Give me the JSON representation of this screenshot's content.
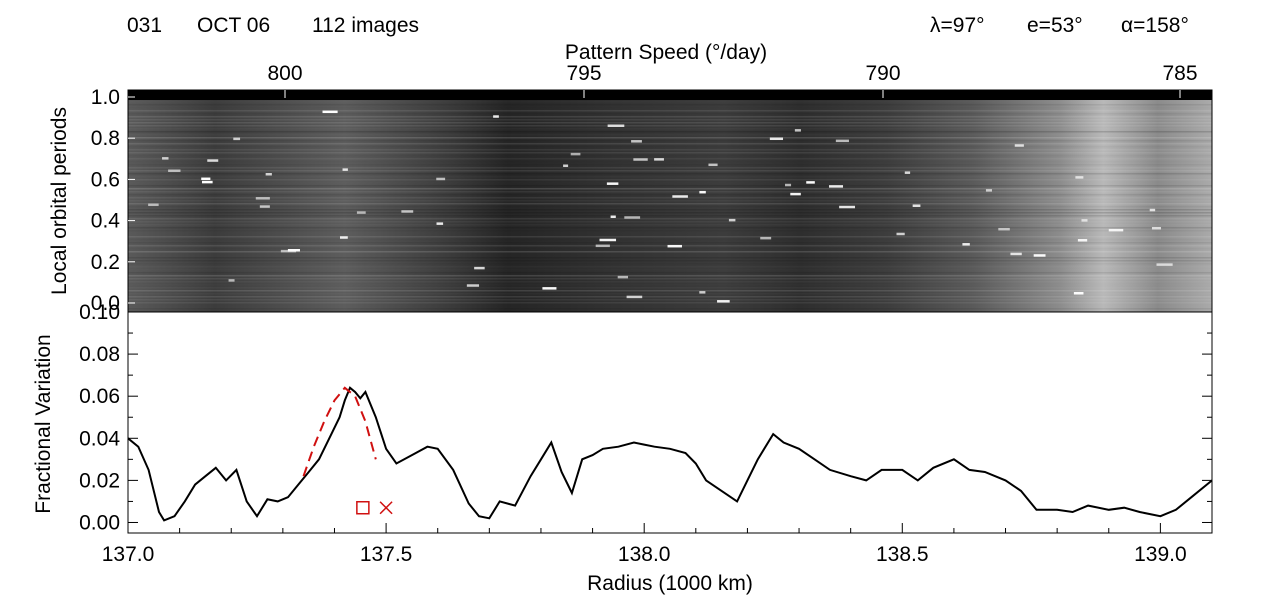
{
  "header": {
    "orbit": "031",
    "date": "OCT 06",
    "image_count": "112 images",
    "lambda": "λ=97°",
    "emission": "e=53°",
    "phase": "α=158°"
  },
  "colors": {
    "line": "#000000",
    "model": "#d01010",
    "marker": "#d01010"
  },
  "chart_data": [
    {
      "type": "heatmap",
      "colormap": "grayscale",
      "title": "",
      "xlabel": "Radius (1000 km)",
      "ylabel": "Local orbital periods",
      "xlim": [
        137.0,
        139.1
      ],
      "ylim": [
        -0.05,
        1.0
      ],
      "yticks": [
        "1.0",
        "0.8",
        "0.6",
        "0.4",
        "0.2",
        "0.0"
      ],
      "secondary_x_axis": {
        "label": "Pattern Speed (°/day)",
        "ticks": [
          "800",
          "795",
          "790",
          "785"
        ],
        "tick_values": [
          800,
          795,
          790,
          785
        ]
      },
      "bright_bands_x": [
        137.45,
        138.85
      ]
    },
    {
      "type": "line",
      "title": "",
      "xlabel": "Radius (1000 km)",
      "ylabel": "Fractional Variation",
      "xlim": [
        137.0,
        139.1
      ],
      "ylim": [
        -0.005,
        0.1
      ],
      "xticks": [
        "137.0",
        "137.5",
        "138.0",
        "138.5",
        "139.0"
      ],
      "xtick_values": [
        137.0,
        137.5,
        138.0,
        138.5,
        139.0
      ],
      "yticks": [
        "0.10",
        "0.08",
        "0.06",
        "0.04",
        "0.02",
        "0.00"
      ],
      "ytick_values": [
        0.1,
        0.08,
        0.06,
        0.04,
        0.02,
        0.0
      ],
      "series": [
        {
          "style": "solid",
          "x": [
            137.0,
            137.02,
            137.04,
            137.06,
            137.07,
            137.09,
            137.11,
            137.13,
            137.15,
            137.17,
            137.19,
            137.21,
            137.23,
            137.25,
            137.27,
            137.29,
            137.31,
            137.33,
            137.35,
            137.37,
            137.39,
            137.41,
            137.42,
            137.43,
            137.44,
            137.45,
            137.46,
            137.48,
            137.5,
            137.52,
            137.55,
            137.58,
            137.6,
            137.63,
            137.66,
            137.68,
            137.7,
            137.72,
            137.75,
            137.78,
            137.8,
            137.82,
            137.84,
            137.86,
            137.88,
            137.9,
            137.92,
            137.95,
            137.98,
            138.0,
            138.02,
            138.05,
            138.08,
            138.1,
            138.12,
            138.15,
            138.18,
            138.2,
            138.22,
            138.25,
            138.27,
            138.3,
            138.33,
            138.36,
            138.4,
            138.43,
            138.46,
            138.5,
            138.53,
            138.56,
            138.6,
            138.63,
            138.66,
            138.7,
            138.73,
            138.76,
            138.8,
            138.83,
            138.86,
            138.9,
            138.93,
            138.96,
            139.0,
            139.03,
            139.06,
            139.1
          ],
          "values": [
            0.04,
            0.036,
            0.025,
            0.005,
            0.001,
            0.003,
            0.01,
            0.018,
            0.022,
            0.026,
            0.02,
            0.025,
            0.01,
            0.003,
            0.011,
            0.01,
            0.012,
            0.018,
            0.024,
            0.03,
            0.04,
            0.05,
            0.058,
            0.064,
            0.062,
            0.059,
            0.062,
            0.05,
            0.035,
            0.028,
            0.032,
            0.036,
            0.035,
            0.025,
            0.009,
            0.003,
            0.002,
            0.01,
            0.008,
            0.022,
            0.03,
            0.038,
            0.024,
            0.014,
            0.03,
            0.032,
            0.035,
            0.036,
            0.038,
            0.037,
            0.036,
            0.035,
            0.033,
            0.028,
            0.02,
            0.015,
            0.01,
            0.02,
            0.03,
            0.042,
            0.038,
            0.035,
            0.03,
            0.025,
            0.022,
            0.02,
            0.025,
            0.025,
            0.02,
            0.026,
            0.03,
            0.025,
            0.024,
            0.02,
            0.015,
            0.006,
            0.006,
            0.005,
            0.008,
            0.006,
            0.007,
            0.005,
            0.003,
            0.006,
            0.012,
            0.02
          ]
        },
        {
          "style": "dashed",
          "x": [
            137.34,
            137.36,
            137.38,
            137.4,
            137.42,
            137.44,
            137.46,
            137.48
          ],
          "values": [
            0.022,
            0.036,
            0.048,
            0.058,
            0.064,
            0.06,
            0.048,
            0.03
          ]
        }
      ],
      "markers": [
        {
          "shape": "square",
          "x": 137.455,
          "y": 0.007
        },
        {
          "shape": "cross",
          "x": 137.5,
          "y": 0.007
        }
      ]
    }
  ]
}
